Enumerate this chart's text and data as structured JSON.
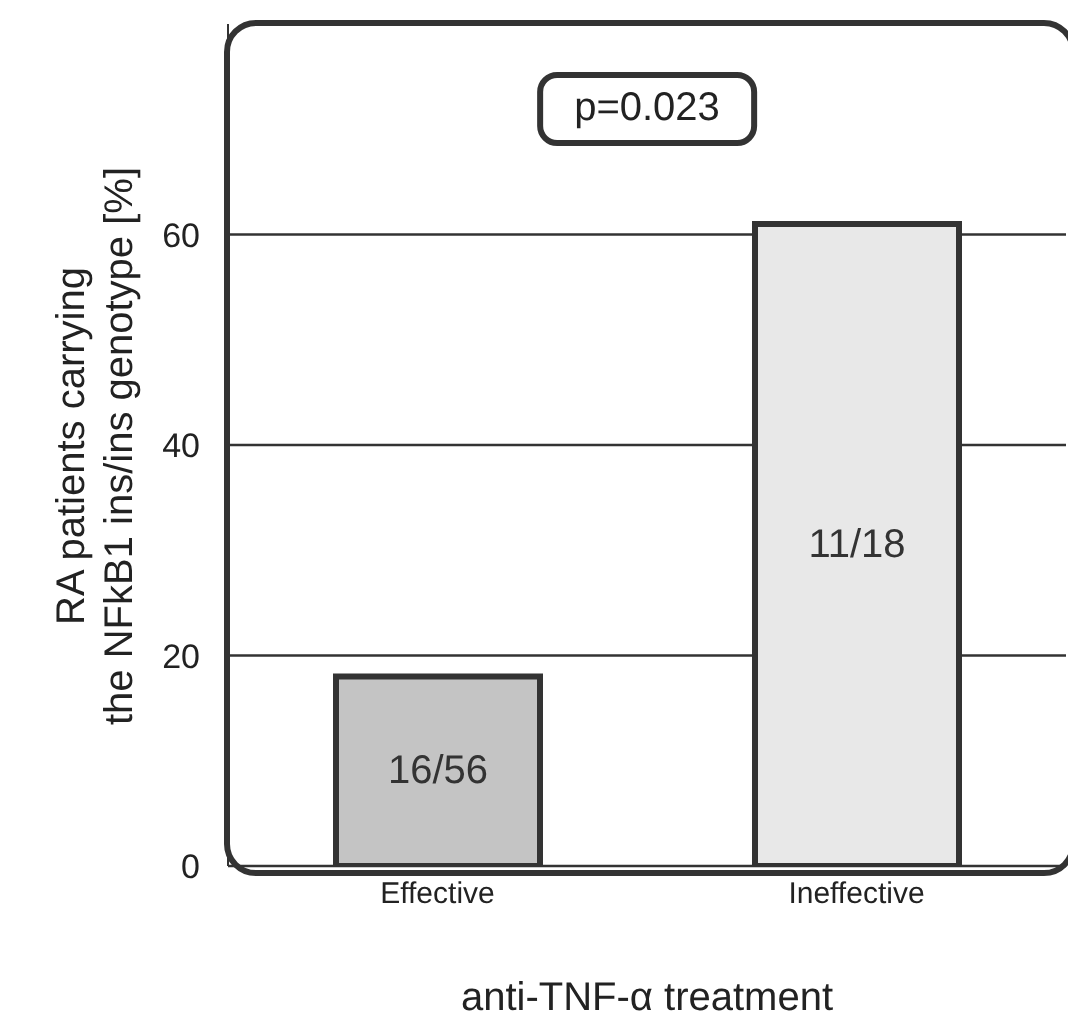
{
  "chart_data": {
    "type": "bar",
    "ylabel": "RA patients carrying\nthe NFkB1 ins/ins genotype [%]",
    "xlabel": "anti-TNF-α treatment",
    "categories": [
      "Effective",
      "Ineffective"
    ],
    "values": [
      18,
      61
    ],
    "colors": [
      "#c4c4c4",
      "#e8e8e8"
    ],
    "value_labels": [
      "16/56",
      "11/18"
    ],
    "ylim": [
      0,
      80
    ],
    "yticks": [
      0,
      20,
      40,
      60
    ],
    "grid": "y",
    "annotations": [
      "p=0.023"
    ]
  }
}
